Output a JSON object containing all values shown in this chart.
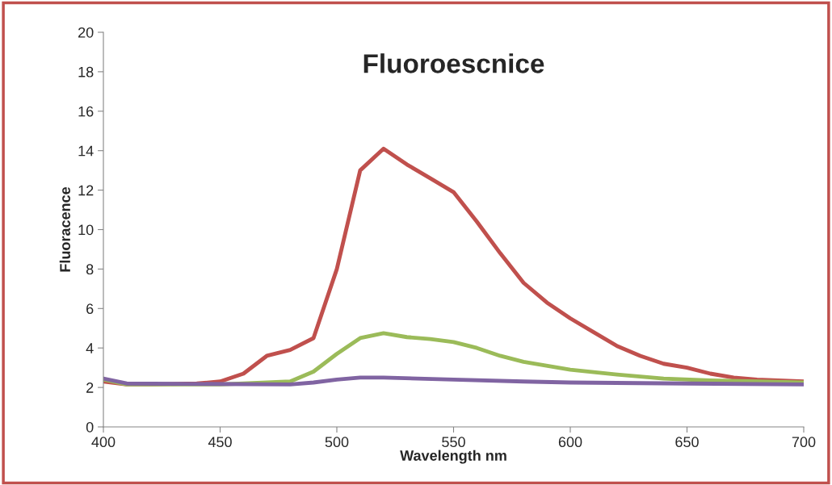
{
  "chart_data": {
    "type": "line",
    "title": "Fluoroescnice",
    "xlabel": "Wavelength nm",
    "ylabel": "Fluoracence",
    "xlim": [
      400,
      700
    ],
    "xticks": [
      400,
      450,
      500,
      550,
      600,
      650,
      700
    ],
    "ylim": [
      0,
      20
    ],
    "yticks": [
      0,
      2,
      4,
      6,
      8,
      10,
      12,
      14,
      16,
      18,
      20
    ],
    "grid": false,
    "legend": false,
    "marker": "none",
    "line_style": "solid",
    "series": [
      {
        "color": "#c0504d",
        "x": [
          400,
          410,
          420,
          440,
          450,
          460,
          470,
          480,
          490,
          500,
          510,
          520,
          530,
          540,
          550,
          560,
          570,
          580,
          590,
          600,
          610,
          620,
          630,
          640,
          650,
          660,
          670,
          680,
          700
        ],
        "values": [
          2.3,
          2.15,
          2.15,
          2.2,
          2.3,
          2.7,
          3.6,
          3.9,
          4.5,
          8,
          13,
          14.1,
          13.3,
          12.6,
          11.9,
          10.4,
          8.8,
          7.3,
          6.3,
          5.5,
          4.8,
          4.1,
          3.6,
          3.2,
          3.0,
          2.7,
          2.5,
          2.4,
          2.3
        ]
      },
      {
        "color": "#9bbb59",
        "x": [
          400,
          410,
          450,
          480,
          490,
          500,
          510,
          520,
          530,
          540,
          550,
          560,
          570,
          580,
          600,
          620,
          640,
          660,
          700
        ],
        "values": [
          2.4,
          2.15,
          2.15,
          2.3,
          2.8,
          3.7,
          4.5,
          4.75,
          4.55,
          4.45,
          4.3,
          4.0,
          3.6,
          3.3,
          2.9,
          2.65,
          2.45,
          2.35,
          2.25
        ]
      },
      {
        "color": "#8064a2",
        "x": [
          400,
          410,
          480,
          490,
          500,
          510,
          520,
          550,
          580,
          600,
          650,
          700
        ],
        "values": [
          2.45,
          2.2,
          2.15,
          2.25,
          2.4,
          2.5,
          2.5,
          2.4,
          2.3,
          2.25,
          2.2,
          2.15
        ]
      }
    ]
  }
}
